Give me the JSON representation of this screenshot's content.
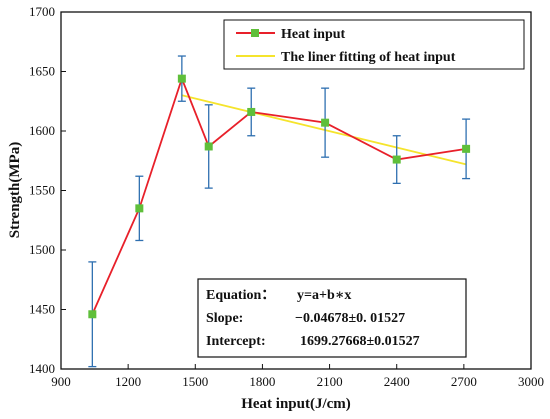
{
  "chart_data": {
    "type": "line",
    "xlabel": "Heat input(J/cm)",
    "ylabel": "Strength(MPa)",
    "xlim": [
      900,
      3000
    ],
    "ylim": [
      1400,
      1700
    ],
    "x_ticks": [
      900,
      1200,
      1500,
      1800,
      2100,
      2400,
      2700,
      3000
    ],
    "y_ticks": [
      1400,
      1450,
      1500,
      1550,
      1600,
      1650,
      1700
    ],
    "grid": false,
    "legend_position": "top-right",
    "series": [
      {
        "name": "Heat input",
        "color": "#e8202a",
        "marker_color": "#5fbf3a",
        "errorbar_color": "#2e6fb0",
        "x": [
          1040,
          1250,
          1440,
          1560,
          1750,
          2080,
          2400,
          2710
        ],
        "y": [
          1446,
          1535,
          1644,
          1587,
          1616,
          1607,
          1576,
          1585
        ],
        "error": [
          44,
          27,
          19,
          35,
          20,
          29,
          20,
          25
        ]
      },
      {
        "name": "The liner fitting of heat input",
        "color": "#f5e42c",
        "x": [
          1440,
          2710
        ],
        "y": [
          1630,
          1572
        ]
      }
    ],
    "annotations": {
      "equation_label": "Equation：",
      "equation_value": "y=a+b∗x",
      "slope_label": "Slope:",
      "slope_value": "−0.04678±0. 01527",
      "intercept_label": "Intercept:",
      "intercept_value": "1699.27668±0.01527"
    }
  }
}
